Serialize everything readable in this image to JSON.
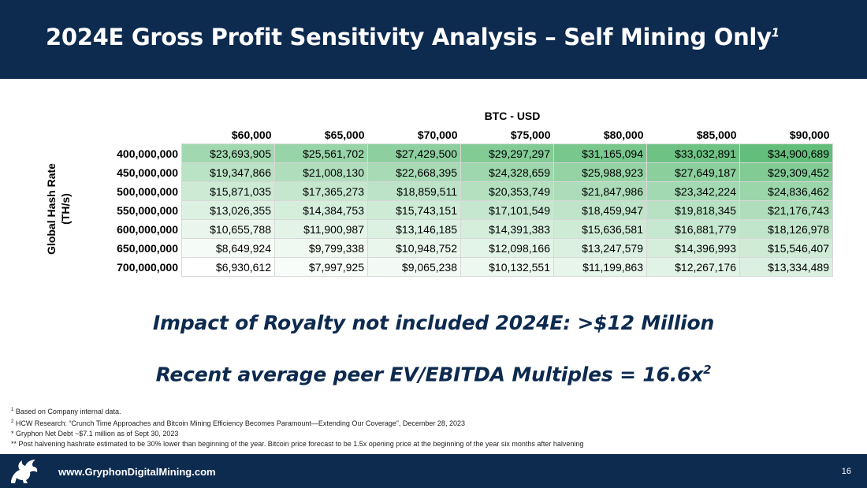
{
  "header": {
    "title": "2024E Gross Profit Sensitivity Analysis – Self Mining Only",
    "title_sup": "1"
  },
  "table": {
    "column_group_label": "BTC - USD",
    "row_axis_label_line1": "Global Hash Rate",
    "row_axis_label_line2": "(TH/s)",
    "columns": [
      "$60,000",
      "$65,000",
      "$70,000",
      "$75,000",
      "$80,000",
      "$85,000",
      "$90,000"
    ],
    "rows": [
      {
        "label": "400,000,000",
        "cells": [
          "$23,693,905",
          "$25,561,702",
          "$27,429,500",
          "$29,297,297",
          "$31,165,094",
          "$33,032,891",
          "$34,900,689"
        ]
      },
      {
        "label": "450,000,000",
        "cells": [
          "$19,347,866",
          "$21,008,130",
          "$22,668,395",
          "$24,328,659",
          "$25,988,923",
          "$27,649,187",
          "$29,309,452"
        ]
      },
      {
        "label": "500,000,000",
        "cells": [
          "$15,871,035",
          "$17,365,273",
          "$18,859,511",
          "$20,353,749",
          "$21,847,986",
          "$23,342,224",
          "$24,836,462"
        ]
      },
      {
        "label": "550,000,000",
        "cells": [
          "$13,026,355",
          "$14,384,753",
          "$15,743,151",
          "$17,101,549",
          "$18,459,947",
          "$19,818,345",
          "$21,176,743"
        ]
      },
      {
        "label": "600,000,000",
        "cells": [
          "$10,655,788",
          "$11,900,987",
          "$13,146,185",
          "$14,391,383",
          "$15,636,581",
          "$16,881,779",
          "$18,126,978"
        ]
      },
      {
        "label": "650,000,000",
        "cells": [
          "$8,649,924",
          "$9,799,338",
          "$10,948,752",
          "$12,098,166",
          "$13,247,579",
          "$14,396,993",
          "$15,546,407"
        ]
      },
      {
        "label": "700,000,000",
        "cells": [
          "$6,930,612",
          "$7,997,925",
          "$9,065,238",
          "$10,132,551",
          "$11,199,863",
          "$12,267,176",
          "$13,334,489"
        ]
      }
    ],
    "heat_colors": {
      "low": "#ffffff",
      "high": "#63be7b"
    }
  },
  "callouts": {
    "royalty": "Impact of Royalty not included 2024E: >$12 Million",
    "multiples": "Recent average peer EV/EBITDA Multiples = 16.6x",
    "multiples_sup": "2"
  },
  "notes": [
    {
      "mark": "1",
      "text": "Based on Company internal data."
    },
    {
      "mark": "2",
      "text": "HCW Research: “Crunch Time Approaches and Bitcoin Mining Efficiency Becomes Paramount—Extending Our Coverage”, December 28, 2023"
    },
    {
      "mark": "",
      "text": "* Gryphon Net Debt ~$7.1 million as of Sept 30, 2023"
    },
    {
      "mark": "",
      "text": "** Post halvening hashrate estimated to be 30% lower than beginning of the year.  Bitcoin price forecast to be 1.5x opening price at the beginning of the year six months after halvening"
    }
  ],
  "footer": {
    "url": "www.GryphonDigitalMining.com",
    "page_number": "16",
    "logo_icon": "gryphon-logo-icon"
  },
  "colors": {
    "navy": "#0d2a4f"
  }
}
